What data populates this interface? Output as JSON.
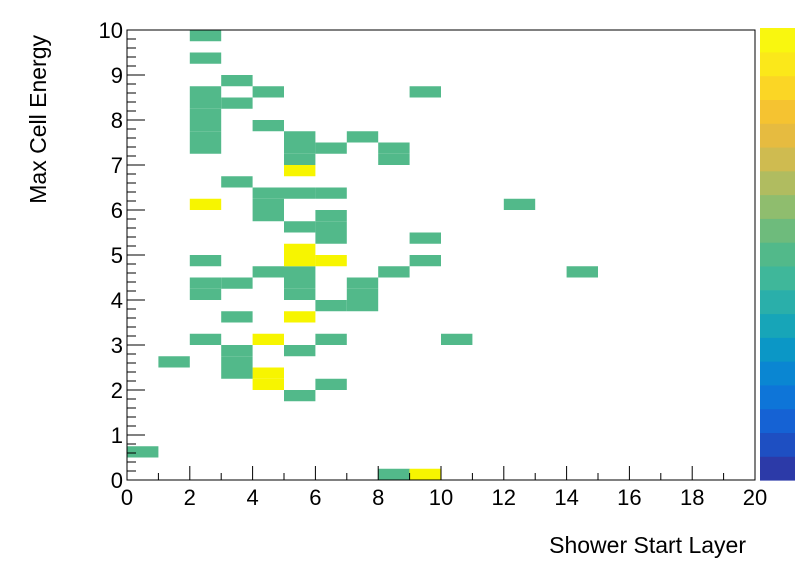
{
  "chart_data": {
    "type": "heatmap",
    "title": "",
    "xlabel": "Shower Start Layer",
    "ylabel": "Max Cell Energy",
    "xlim": [
      0,
      20
    ],
    "ylim": [
      0,
      10
    ],
    "xticks": [
      "0",
      "2",
      "4",
      "6",
      "8",
      "10",
      "12",
      "14",
      "16",
      "18",
      "20"
    ],
    "yticks": [
      "0",
      "1",
      "2",
      "3",
      "4",
      "5",
      "6",
      "7",
      "8",
      "9",
      "10"
    ],
    "bin_width_x": 1,
    "bin_height_y": 0.25,
    "grid": false,
    "palette": "green cells = low counts, yellow cells = highest counts",
    "palette_colors": {
      "low": "#52b98a",
      "high": "#f7f500"
    },
    "colorbar_colors": [
      "#2c3aa8",
      "#1e4fc2",
      "#1562d4",
      "#0e75d8",
      "#0a86d2",
      "#0b97c6",
      "#17a5b8",
      "#2aafaa",
      "#3fb79a",
      "#52b98a",
      "#6ebb7c",
      "#8fbd6e",
      "#b0bc60",
      "#cfbb50",
      "#e6bb40",
      "#f5c331",
      "#fbd625",
      "#fbe81a",
      "#f9f70f"
    ],
    "bins": [
      {
        "x0": 0,
        "y0": 0.5,
        "level": "low"
      },
      {
        "x0": 8,
        "y0": 0,
        "level": "low"
      },
      {
        "x0": 9,
        "y0": 0,
        "level": "high"
      },
      {
        "x0": 5,
        "y0": 1.75,
        "level": "low"
      },
      {
        "x0": 4,
        "y0": 2.0,
        "level": "high"
      },
      {
        "x0": 4,
        "y0": 2.25,
        "level": "high"
      },
      {
        "x0": 6,
        "y0": 2.0,
        "level": "low"
      },
      {
        "x0": 3,
        "y0": 2.25,
        "level": "low"
      },
      {
        "x0": 1,
        "y0": 2.5,
        "level": "low"
      },
      {
        "x0": 3,
        "y0": 2.5,
        "level": "low"
      },
      {
        "x0": 3,
        "y0": 2.75,
        "level": "low"
      },
      {
        "x0": 5,
        "y0": 2.75,
        "level": "low"
      },
      {
        "x0": 2,
        "y0": 3.0,
        "level": "low"
      },
      {
        "x0": 4,
        "y0": 3.0,
        "level": "high"
      },
      {
        "x0": 6,
        "y0": 3.0,
        "level": "low"
      },
      {
        "x0": 10,
        "y0": 3.0,
        "level": "low"
      },
      {
        "x0": 3,
        "y0": 3.5,
        "level": "low"
      },
      {
        "x0": 5,
        "y0": 3.5,
        "level": "high"
      },
      {
        "x0": 6,
        "y0": 3.75,
        "level": "low"
      },
      {
        "x0": 7,
        "y0": 3.75,
        "level": "low"
      },
      {
        "x0": 7,
        "y0": 4.0,
        "level": "low"
      },
      {
        "x0": 5,
        "y0": 4.0,
        "level": "low"
      },
      {
        "x0": 2,
        "y0": 4.0,
        "level": "low"
      },
      {
        "x0": 2,
        "y0": 4.25,
        "level": "low"
      },
      {
        "x0": 3,
        "y0": 4.25,
        "level": "low"
      },
      {
        "x0": 5,
        "y0": 4.25,
        "level": "low"
      },
      {
        "x0": 7,
        "y0": 4.25,
        "level": "low"
      },
      {
        "x0": 4,
        "y0": 4.5,
        "level": "low"
      },
      {
        "x0": 5,
        "y0": 4.5,
        "level": "low"
      },
      {
        "x0": 8,
        "y0": 4.5,
        "level": "low"
      },
      {
        "x0": 14,
        "y0": 4.5,
        "level": "low"
      },
      {
        "x0": 2,
        "y0": 4.75,
        "level": "low"
      },
      {
        "x0": 5,
        "y0": 4.75,
        "level": "high"
      },
      {
        "x0": 6,
        "y0": 4.75,
        "level": "high"
      },
      {
        "x0": 5,
        "y0": 5.0,
        "level": "high"
      },
      {
        "x0": 9,
        "y0": 4.75,
        "level": "low"
      },
      {
        "x0": 6,
        "y0": 5.25,
        "level": "low"
      },
      {
        "x0": 9,
        "y0": 5.25,
        "level": "low"
      },
      {
        "x0": 5,
        "y0": 5.5,
        "level": "low"
      },
      {
        "x0": 6,
        "y0": 5.5,
        "level": "low"
      },
      {
        "x0": 4,
        "y0": 5.75,
        "level": "low"
      },
      {
        "x0": 6,
        "y0": 5.75,
        "level": "low"
      },
      {
        "x0": 2,
        "y0": 6.0,
        "level": "high"
      },
      {
        "x0": 4,
        "y0": 6.0,
        "level": "low"
      },
      {
        "x0": 12,
        "y0": 6.0,
        "level": "low"
      },
      {
        "x0": 4,
        "y0": 6.25,
        "level": "low"
      },
      {
        "x0": 5,
        "y0": 6.25,
        "level": "low"
      },
      {
        "x0": 6,
        "y0": 6.25,
        "level": "low"
      },
      {
        "x0": 3,
        "y0": 6.5,
        "level": "low"
      },
      {
        "x0": 5,
        "y0": 6.75,
        "level": "high"
      },
      {
        "x0": 5,
        "y0": 7.0,
        "level": "low"
      },
      {
        "x0": 8,
        "y0": 7.0,
        "level": "low"
      },
      {
        "x0": 2,
        "y0": 7.25,
        "level": "low"
      },
      {
        "x0": 5,
        "y0": 7.25,
        "level": "low"
      },
      {
        "x0": 6,
        "y0": 7.25,
        "level": "low"
      },
      {
        "x0": 8,
        "y0": 7.25,
        "level": "low"
      },
      {
        "x0": 2,
        "y0": 7.5,
        "level": "low"
      },
      {
        "x0": 5,
        "y0": 7.5,
        "level": "low"
      },
      {
        "x0": 7,
        "y0": 7.5,
        "level": "low"
      },
      {
        "x0": 2,
        "y0": 7.75,
        "level": "low"
      },
      {
        "x0": 4,
        "y0": 7.75,
        "level": "low"
      },
      {
        "x0": 2,
        "y0": 8.0,
        "level": "low"
      },
      {
        "x0": 2,
        "y0": 8.25,
        "level": "low"
      },
      {
        "x0": 3,
        "y0": 8.25,
        "level": "low"
      },
      {
        "x0": 2,
        "y0": 8.5,
        "level": "low"
      },
      {
        "x0": 4,
        "y0": 8.5,
        "level": "low"
      },
      {
        "x0": 9,
        "y0": 8.5,
        "level": "low"
      },
      {
        "x0": 3,
        "y0": 8.75,
        "level": "low"
      },
      {
        "x0": 2,
        "y0": 9.25,
        "level": "low"
      },
      {
        "x0": 2,
        "y0": 9.75,
        "level": "low"
      }
    ]
  }
}
